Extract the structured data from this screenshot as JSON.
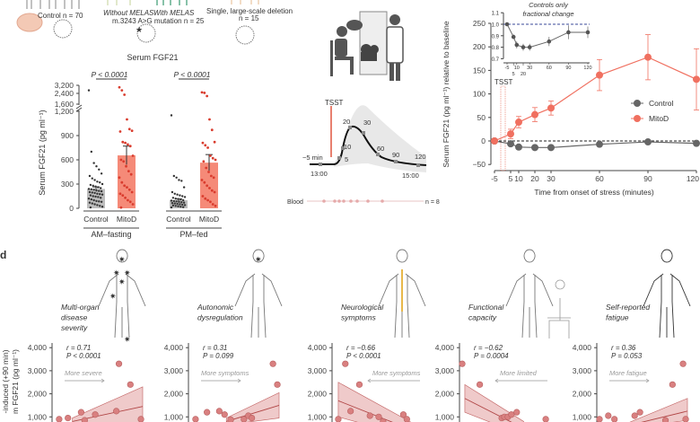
{
  "colors": {
    "mitod": "#f07060",
    "mitod_bar": "#f58a78",
    "control": "#666666",
    "control_bar": "#bdbdbd",
    "tsst": "#e0553f",
    "scatter": "#d98080",
    "band": "#e8b4b4",
    "inset_ref": "#3a4a9a"
  },
  "cohorts": {
    "control_label": "Control n = 70",
    "without_melas": "Without MELAS",
    "with_melas": "With MELAS",
    "m3243": "m.3243 A>G mutation n = 25",
    "single_deletion": "Single, large-scale deletion",
    "single_n": "n = 15"
  },
  "protocol": {
    "tsst_label": "TSST",
    "time_labels": [
      "−5 min",
      "5",
      "10",
      "20",
      "30",
      "60",
      "90",
      "120"
    ],
    "clock_start": "13:00",
    "clock_end": "15:00",
    "blood_label": "Blood",
    "blood_n": "n = 8"
  },
  "panel_d_label": "d",
  "chart_data": [
    {
      "type": "bar",
      "title": "Serum FGF21",
      "ylabel": "Serum FGF21 (pg ml⁻¹)",
      "yticks": [
        "0",
        "300",
        "600",
        "900",
        "1,200",
        "1,600",
        "2,400",
        "3,200"
      ],
      "groups": [
        {
          "label": "AM–fasting",
          "p_value": "P < 0.0001",
          "bars": [
            {
              "category": "Control",
              "mean": 240,
              "sem": 25,
              "points": [
                2700,
                700,
                560,
                520,
                480,
                430,
                400,
                370,
                350,
                330,
                320,
                300,
                290,
                280,
                270,
                260,
                250,
                240,
                235,
                230,
                220,
                215,
                210,
                200,
                195,
                190,
                180,
                175,
                170,
                160,
                150,
                145,
                140,
                130,
                120,
                110,
                100,
                90,
                85,
                80,
                70,
                60,
                50,
                40,
                30,
                20,
                10
              ]
            },
            {
              "category": "MitoD",
              "mean": 655,
              "sem": 115,
              "points": [
                3000,
                2700,
                2300,
                1100,
                980,
                960,
                950,
                820,
                810,
                790,
                770,
                650,
                600,
                580,
                520,
                460,
                420,
                380,
                320,
                280,
                260,
                230,
                200,
                180,
                160,
                130,
                100,
                80,
                50,
                10
              ]
            }
          ]
        },
        {
          "label": "PM–fed",
          "p_value": "P < 0.0001",
          "bars": [
            {
              "category": "Control",
              "mean": 100,
              "sem": 15,
              "points": [
                1150,
                400,
                380,
                350,
                340,
                260,
                200,
                180,
                170,
                160,
                150,
                140,
                130,
                120,
                115,
                110,
                100,
                95,
                90,
                85,
                80,
                75,
                70,
                65,
                60,
                55,
                50,
                45,
                40,
                35,
                30,
                25,
                20,
                15,
                10
              ]
            },
            {
              "category": "MitoD",
              "mean": 565,
              "sem": 100,
              "points": [
                2500,
                2450,
                2200,
                1100,
                970,
                820,
                810,
                780,
                750,
                650,
                620,
                600,
                580,
                500,
                450,
                400,
                380,
                350,
                320,
                280,
                250,
                220,
                200,
                150,
                120,
                100,
                80,
                50,
                30
              ]
            }
          ]
        }
      ]
    },
    {
      "type": "line",
      "xlabel": "Time from onset of stress (minutes)",
      "ylabel": "Serum FGF21 (pg ml⁻¹) relative to baseline",
      "ylim": [
        -50,
        250
      ],
      "yticks": [
        "−50",
        "0",
        "50",
        "100",
        "150",
        "200",
        "250"
      ],
      "x": [
        -5,
        5,
        10,
        20,
        30,
        60,
        90,
        120
      ],
      "xtick_labels": [
        "-5",
        "5",
        "10",
        "20",
        "30",
        "60",
        "90",
        "120"
      ],
      "tsst_label": "TSST",
      "legend": "right",
      "series": [
        {
          "name": "Control",
          "values": [
            0,
            -6,
            -13,
            -14,
            -14,
            -7,
            -2,
            -5
          ],
          "err": [
            0,
            4,
            4,
            4,
            4,
            4,
            4,
            4
          ]
        },
        {
          "name": "MitoD",
          "values": [
            0,
            15,
            40,
            56,
            70,
            140,
            178,
            131
          ],
          "err": [
            0,
            10,
            12,
            15,
            15,
            33,
            48,
            65
          ]
        }
      ]
    },
    {
      "type": "line",
      "title": "Controls only fractional change",
      "ylim": [
        0.7,
        1.1
      ],
      "yticks": [
        "0.7",
        "0.8",
        "0.9",
        "1.0",
        "1.1"
      ],
      "x": [
        -5,
        5,
        10,
        20,
        30,
        60,
        90,
        120
      ],
      "xtick_labels": [
        "-5",
        "5",
        "10",
        "20",
        "30",
        "60",
        "90",
        "120"
      ],
      "reference": 1.0,
      "series": [
        {
          "name": "Control",
          "values": [
            1.0,
            0.89,
            0.82,
            0.8,
            0.8,
            0.85,
            0.93,
            0.93
          ],
          "err": [
            0,
            0.02,
            0.03,
            0.03,
            0.03,
            0.04,
            0.06,
            0.05
          ]
        }
      ]
    },
    {
      "type": "scatter",
      "ylabel_lines": [
        "-induced (+90 min)",
        "m FGF21 (pg ml⁻¹)"
      ],
      "yticks": [
        "1,000",
        "2,000",
        "3,000",
        "4,000"
      ],
      "panels": [
        {
          "label": [
            "Multi-organ",
            "disease",
            "severity"
          ],
          "r": "r = 0.71",
          "p": "P < 0.0001",
          "direction": "More severe",
          "arrow": "right",
          "points": [
            [
              0.5,
              900
            ],
            [
              1.5,
              950
            ],
            [
              3,
              1200
            ],
            [
              3.4,
              850
            ],
            [
              4.6,
              1100
            ],
            [
              7,
              1250
            ],
            [
              7.3,
              3300
            ],
            [
              8.6,
              2400
            ],
            [
              9.8,
              900
            ]
          ],
          "fit": [
            [
              2,
              800
            ],
            [
              10,
              1450
            ]
          ],
          "band": [
            [
              2,
              950,
              650
            ],
            [
              10,
              2300,
              700
            ]
          ]
        },
        {
          "label": [
            "Autonomic",
            "dysregulation"
          ],
          "r": "r = 0.31",
          "p": "P = 0.099",
          "direction": "More symptoms",
          "arrow": "right",
          "points": [
            [
              0.5,
              900
            ],
            [
              1.8,
              1200
            ],
            [
              3.2,
              1250
            ],
            [
              3.8,
              1100
            ],
            [
              4.5,
              880
            ],
            [
              6,
              900
            ],
            [
              6.5,
              1050
            ],
            [
              6.9,
              950
            ],
            [
              9.3,
              3300
            ],
            [
              9.8,
              2400
            ]
          ],
          "fit": [
            [
              4,
              800
            ],
            [
              10,
              1500
            ]
          ],
          "band": [
            [
              4,
              950,
              650
            ],
            [
              10,
              2050,
              950
            ]
          ]
        },
        {
          "label": [
            "Neurological",
            "symptoms"
          ],
          "r": "r = −0.66",
          "p": "P < 0.0001",
          "direction": "More symptoms",
          "arrow": "left",
          "points": [
            [
              0.4,
              900
            ],
            [
              1.2,
              3300
            ],
            [
              1.8,
              1250
            ],
            [
              2.8,
              2400
            ],
            [
              4,
              1050
            ],
            [
              5,
              1000
            ],
            [
              5.5,
              800
            ],
            [
              7.8,
              1100
            ],
            [
              8.2,
              900
            ]
          ],
          "fit": [
            [
              0.4,
              1700
            ],
            [
              9,
              400
            ]
          ],
          "band": [
            [
              0.4,
              2500,
              1000
            ],
            [
              9,
              700,
              100
            ]
          ]
        },
        {
          "label": [
            "Functional",
            "capacity"
          ],
          "r": "r = −0.62",
          "p": "P = 0.0004",
          "direction": "More limited",
          "arrow": "left",
          "points": [
            [
              0,
              3300
            ],
            [
              2,
              2400
            ],
            [
              4.5,
              950
            ],
            [
              4.8,
              1000
            ],
            [
              5.2,
              1000
            ],
            [
              5.6,
              1100
            ],
            [
              6.2,
              1200
            ],
            [
              9.5,
              900
            ]
          ],
          "fit": [
            [
              0.3,
              1800
            ],
            [
              7,
              500
            ]
          ],
          "band": [
            [
              0.3,
              2400,
              1200
            ],
            [
              7,
              800,
              200
            ]
          ]
        },
        {
          "label": [
            "Self-reported",
            "fatigue"
          ],
          "r": "r = 0.36",
          "p": "P = 0.053",
          "direction": "More fatigue",
          "arrow": "right",
          "points": [
            [
              0,
              900
            ],
            [
              1,
              1050
            ],
            [
              1.7,
              900
            ],
            [
              4,
              1050
            ],
            [
              4.6,
              1200
            ],
            [
              7.5,
              850
            ],
            [
              8.3,
              2400
            ],
            [
              9.5,
              3300
            ],
            [
              9.8,
              900
            ]
          ],
          "fit": [
            [
              3,
              600
            ],
            [
              10,
              1250
            ]
          ],
          "band": [
            [
              3,
              700,
              500
            ],
            [
              10,
              1800,
              850
            ]
          ]
        }
      ]
    }
  ]
}
